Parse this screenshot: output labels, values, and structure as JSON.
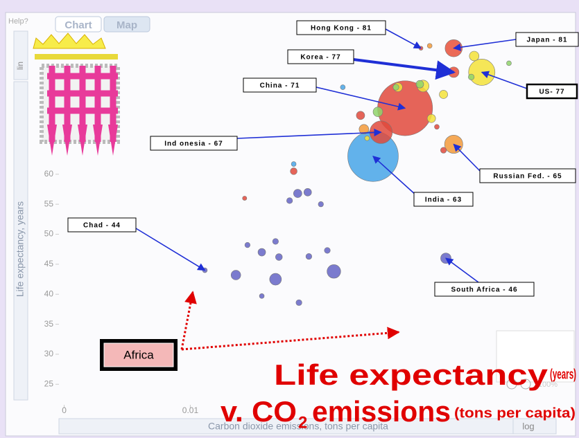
{
  "ui": {
    "help": "Help?",
    "tab_chart": "Chart",
    "tab_map": "Map",
    "lin": "lin",
    "log": "log",
    "zoom": "100%",
    "africa": "Africa"
  },
  "chart_data": {
    "type": "scatter",
    "title_main": "Life expectancy",
    "title_units": "(years)",
    "title_vs": "v. CO",
    "title_sub": "2",
    "title_emissions": "emissions",
    "title_emission_units": "(tons per capita)",
    "x_label": "Carbon dioxide emissions, tons per capita",
    "y_label": "Life expectancy, years",
    "xscale": "log",
    "xlim": [
      0.00035,
      186
    ],
    "xticks": [
      {
        "value": 0.0004,
        "label": "0"
      },
      0.01
    ],
    "ylim": [
      21,
      85
    ],
    "yticks": [
      25,
      30,
      35,
      40,
      45,
      50,
      55,
      60
    ],
    "grid": false,
    "points": [
      {
        "label": "Hong Kong - 81",
        "x": 3.6,
        "y": 81,
        "size": 7,
        "color": "#e8503a"
      },
      {
        "label": "Japan - 81",
        "x": 8.3,
        "y": 81,
        "size": 127,
        "color": "#e8503a"
      },
      {
        "label": "Korea - 77",
        "x": 8.3,
        "y": 77,
        "size": 48,
        "color": "#e8503a"
      },
      {
        "label": "US- 77",
        "x": 17,
        "y": 77,
        "size": 300,
        "color": "#f3e23a"
      },
      {
        "label": "China - 71",
        "x": 2.4,
        "y": 71,
        "size": 1300,
        "color": "#e0493c"
      },
      {
        "label": "Ind onesia - 67",
        "x": 1.3,
        "y": 67,
        "size": 220,
        "color": "#e0493c"
      },
      {
        "label": "India - 63",
        "x": 1.06,
        "y": 63,
        "size": 1100,
        "color": "#47a4e8"
      },
      {
        "label": "Russian Fed. - 65",
        "x": 8.3,
        "y": 65,
        "size": 143,
        "color": "#f39a3a"
      },
      {
        "label": "Chad - 44",
        "x": 0.0145,
        "y": 44,
        "size": 10,
        "color": "#6464c6"
      },
      {
        "label": "South Africa - 46",
        "x": 6.8,
        "y": 46,
        "size": 47,
        "color": "#6464c6"
      },
      {
        "x": 0.155,
        "y": 56.8,
        "size": 30,
        "color": "#6464c6"
      },
      {
        "x": 0.2,
        "y": 57,
        "size": 25,
        "color": "#6464c6"
      },
      {
        "x": 0.126,
        "y": 55.6,
        "size": 15,
        "color": "#6464c6"
      },
      {
        "x": 0.28,
        "y": 55,
        "size": 12,
        "color": "#6464c6"
      },
      {
        "x": 0.088,
        "y": 48.8,
        "size": 15,
        "color": "#6464c6"
      },
      {
        "x": 0.062,
        "y": 47,
        "size": 25,
        "color": "#6464c6"
      },
      {
        "x": 0.043,
        "y": 48.2,
        "size": 12,
        "color": "#6464c6"
      },
      {
        "x": 0.096,
        "y": 46.2,
        "size": 20,
        "color": "#6464c6"
      },
      {
        "x": 0.206,
        "y": 46.3,
        "size": 15,
        "color": "#6464c6"
      },
      {
        "x": 0.33,
        "y": 47.3,
        "size": 15,
        "color": "#6464c6"
      },
      {
        "x": 0.032,
        "y": 43.2,
        "size": 40,
        "color": "#6464c6"
      },
      {
        "x": 0.088,
        "y": 42.5,
        "size": 60,
        "color": "#6464c6"
      },
      {
        "x": 0.39,
        "y": 43.8,
        "size": 80,
        "color": "#6464c6"
      },
      {
        "x": 0.062,
        "y": 39.7,
        "size": 10,
        "color": "#6464c6"
      },
      {
        "x": 0.16,
        "y": 38.6,
        "size": 15,
        "color": "#6464c6"
      },
      {
        "x": 0.04,
        "y": 56,
        "size": 8,
        "color": "#e0493c"
      },
      {
        "x": 0.14,
        "y": 60.5,
        "size": 20,
        "color": "#e0493c"
      },
      {
        "x": 0.14,
        "y": 61.7,
        "size": 10,
        "color": "#47a4e8"
      },
      {
        "x": 3.8,
        "y": 74.7,
        "size": 60,
        "color": "#f3e23a"
      },
      {
        "x": 1.2,
        "y": 70.4,
        "size": 40,
        "color": "#8fd36a"
      },
      {
        "x": 0.77,
        "y": 69.8,
        "size": 30,
        "color": "#e0493c"
      },
      {
        "x": 0.84,
        "y": 67.5,
        "size": 40,
        "color": "#f39a3a"
      },
      {
        "x": 4.7,
        "y": 69.3,
        "size": 30,
        "color": "#f3e23a"
      },
      {
        "x": 3.5,
        "y": 75,
        "size": 25,
        "color": "#8fd36a"
      },
      {
        "x": 2.0,
        "y": 74.5,
        "size": 35,
        "color": "#f3e23a"
      },
      {
        "x": 6.4,
        "y": 73.3,
        "size": 30,
        "color": "#f3e23a"
      },
      {
        "x": 14,
        "y": 79.7,
        "size": 40,
        "color": "#f3e23a"
      },
      {
        "x": 6.4,
        "y": 64,
        "size": 15,
        "color": "#e0493c"
      },
      {
        "x": 5.4,
        "y": 67.9,
        "size": 10,
        "color": "#e0493c"
      },
      {
        "x": 13,
        "y": 76.2,
        "size": 15,
        "color": "#8fd36a"
      },
      {
        "x": 4.5,
        "y": 81.4,
        "size": 10,
        "color": "#f39a3a"
      },
      {
        "x": 1.9,
        "y": 74.5,
        "size": 15,
        "color": "#8fd36a"
      },
      {
        "x": 0.49,
        "y": 74.5,
        "size": 10,
        "color": "#47a4e8"
      },
      {
        "x": 0.91,
        "y": 66,
        "size": 10,
        "color": "#f3e23a"
      },
      {
        "x": 34,
        "y": 78.5,
        "size": 10,
        "color": "#8fd36a"
      }
    ]
  }
}
